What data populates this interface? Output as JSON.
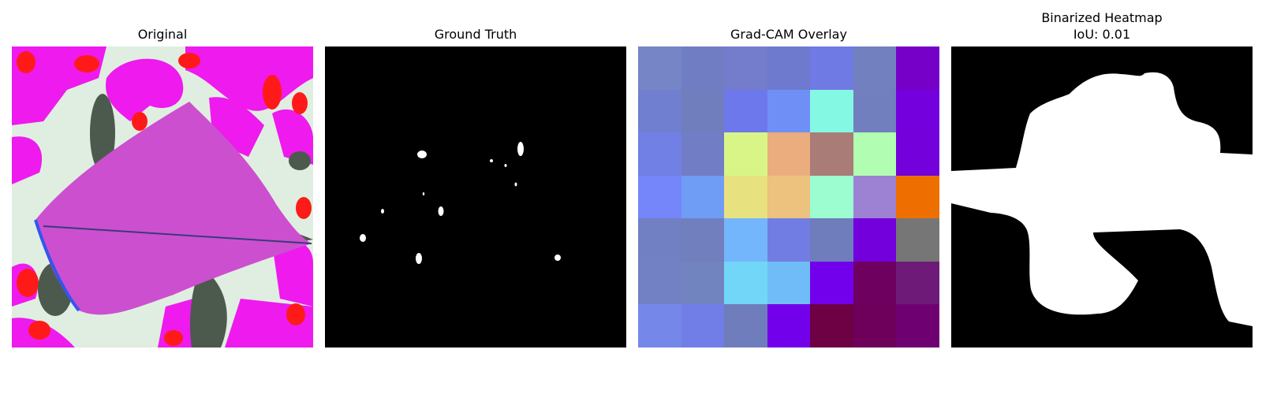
{
  "panels": [
    {
      "title": "Original"
    },
    {
      "title": "Ground Truth"
    },
    {
      "title": "Grad-CAM Overlay"
    },
    {
      "title": "Binarized Heatmap",
      "subtitle": "IoU: 0.01"
    }
  ],
  "colors": {
    "original_background": "#dfeee0",
    "original_magenta": "#ee1aee",
    "original_red": "#ff1a1a",
    "original_leaf": "#cc4fcf",
    "original_dark": "#4c5a4e",
    "mask_background": "#000000",
    "mask_foreground": "#ffffff"
  },
  "gradcam_grid": [
    [
      "#7585c6",
      "#717dc2",
      "#747ccc",
      "#6d7acd",
      "#6f7ae4",
      "#7380bf",
      "#7600c8"
    ],
    [
      "#717fd0",
      "#717ebd",
      "#6d78ec",
      "#6f8ff6",
      "#84f8e2",
      "#717fbf",
      "#7400dd"
    ],
    [
      "#7180e4",
      "#717dc4",
      "#d9f587",
      "#ebac7e",
      "#a97c78",
      "#b1fdb1",
      "#7400dc"
    ],
    [
      "#7486fa",
      "#6f9cf5",
      "#e8e17f",
      "#edc17e",
      "#9bfdd0",
      "#9d82d3",
      "#ee6e00"
    ],
    [
      "#7180c3",
      "#717fbe",
      "#73b6fb",
      "#727de3",
      "#6f7dbc",
      "#7300dc",
      "#767676"
    ],
    [
      "#7280c4",
      "#7284c0",
      "#71d6f8",
      "#70bcf8",
      "#7300ec",
      "#6e0060",
      "#6e1a78"
    ],
    [
      "#7587e8",
      "#727ee7",
      "#6f7dbc",
      "#7300ea",
      "#6e0044",
      "#6e005c",
      "#6f0072"
    ]
  ]
}
